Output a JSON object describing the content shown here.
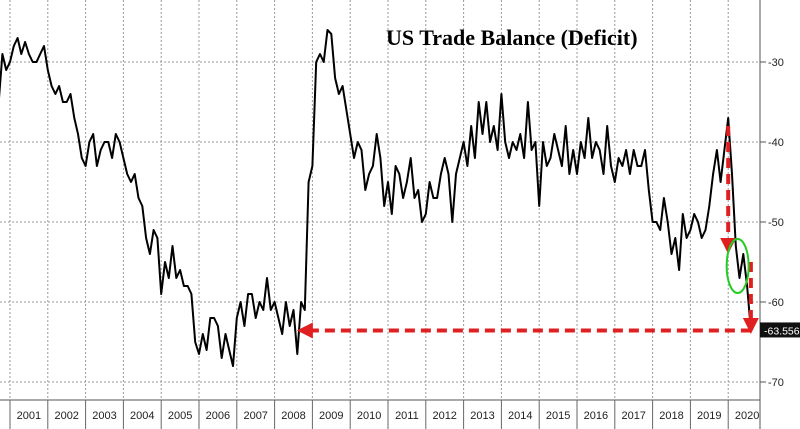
{
  "chart_data": {
    "type": "line",
    "title": "US Trade Balance (Deficit)",
    "xlabel": "",
    "ylabel": "",
    "x_categories": [
      "2001",
      "2002",
      "2003",
      "2004",
      "2005",
      "2006",
      "2007",
      "2008",
      "2009",
      "2010",
      "2011",
      "2012",
      "2013",
      "2014",
      "2015",
      "2016",
      "2017",
      "2018",
      "2019",
      "2020"
    ],
    "y_axis": {
      "position": "right",
      "inverted": true,
      "ylim": [
        -72,
        -22
      ],
      "ticks": [
        -30,
        -40,
        -50,
        -60,
        -70
      ],
      "tick_labels": [
        "-30",
        "-40",
        "-50",
        "-60",
        "-70"
      ]
    },
    "grid": true,
    "series": [
      {
        "name": "",
        "color": "#000000",
        "points": [
          [
            2000.5,
            -33
          ],
          [
            2000.6,
            -34
          ],
          [
            2000.7,
            -35
          ],
          [
            2000.8,
            -29
          ],
          [
            2000.9,
            -31
          ],
          [
            2001.0,
            -30
          ],
          [
            2001.1,
            -28
          ],
          [
            2001.2,
            -27
          ],
          [
            2001.3,
            -29
          ],
          [
            2001.4,
            -27.5
          ],
          [
            2001.5,
            -29
          ],
          [
            2001.6,
            -30
          ],
          [
            2001.7,
            -30
          ],
          [
            2001.8,
            -29
          ],
          [
            2001.9,
            -28
          ],
          [
            2002.0,
            -31
          ],
          [
            2002.1,
            -33
          ],
          [
            2002.2,
            -34
          ],
          [
            2002.3,
            -33
          ],
          [
            2002.4,
            -35
          ],
          [
            2002.5,
            -35
          ],
          [
            2002.6,
            -34
          ],
          [
            2002.7,
            -37
          ],
          [
            2002.8,
            -39
          ],
          [
            2002.9,
            -42
          ],
          [
            2003.0,
            -43
          ],
          [
            2003.1,
            -40
          ],
          [
            2003.2,
            -39
          ],
          [
            2003.3,
            -43
          ],
          [
            2003.4,
            -41
          ],
          [
            2003.5,
            -40
          ],
          [
            2003.6,
            -40
          ],
          [
            2003.7,
            -42
          ],
          [
            2003.8,
            -39
          ],
          [
            2003.9,
            -40
          ],
          [
            2004.0,
            -42
          ],
          [
            2004.1,
            -44
          ],
          [
            2004.2,
            -45
          ],
          [
            2004.3,
            -44
          ],
          [
            2004.4,
            -47
          ],
          [
            2004.5,
            -48
          ],
          [
            2004.6,
            -52
          ],
          [
            2004.7,
            -54
          ],
          [
            2004.8,
            -51
          ],
          [
            2004.9,
            -52
          ],
          [
            2005.0,
            -59
          ],
          [
            2005.1,
            -55
          ],
          [
            2005.2,
            -57
          ],
          [
            2005.3,
            -53
          ],
          [
            2005.4,
            -57
          ],
          [
            2005.5,
            -56
          ],
          [
            2005.6,
            -58
          ],
          [
            2005.7,
            -58
          ],
          [
            2005.8,
            -59
          ],
          [
            2005.9,
            -65
          ],
          [
            2006.0,
            -66.5
          ],
          [
            2006.1,
            -64
          ],
          [
            2006.2,
            -66
          ],
          [
            2006.3,
            -62
          ],
          [
            2006.4,
            -62
          ],
          [
            2006.5,
            -63
          ],
          [
            2006.6,
            -67
          ],
          [
            2006.7,
            -64
          ],
          [
            2006.8,
            -66
          ],
          [
            2006.9,
            -68
          ],
          [
            2007.0,
            -62
          ],
          [
            2007.1,
            -60
          ],
          [
            2007.2,
            -63
          ],
          [
            2007.3,
            -59
          ],
          [
            2007.4,
            -59
          ],
          [
            2007.5,
            -62
          ],
          [
            2007.6,
            -60
          ],
          [
            2007.7,
            -61
          ],
          [
            2007.8,
            -57
          ],
          [
            2007.9,
            -61
          ],
          [
            2008.0,
            -60
          ],
          [
            2008.1,
            -62
          ],
          [
            2008.2,
            -64
          ],
          [
            2008.3,
            -60
          ],
          [
            2008.4,
            -63
          ],
          [
            2008.5,
            -61
          ],
          [
            2008.6,
            -66.5
          ],
          [
            2008.7,
            -60
          ],
          [
            2008.8,
            -61
          ],
          [
            2008.9,
            -45
          ],
          [
            2009.0,
            -43
          ],
          [
            2009.1,
            -30
          ],
          [
            2009.2,
            -29
          ],
          [
            2009.3,
            -30
          ],
          [
            2009.4,
            -26
          ],
          [
            2009.5,
            -26.5
          ],
          [
            2009.6,
            -32
          ],
          [
            2009.7,
            -34
          ],
          [
            2009.8,
            -33
          ],
          [
            2009.9,
            -36
          ],
          [
            2010.0,
            -39
          ],
          [
            2010.1,
            -42
          ],
          [
            2010.2,
            -40
          ],
          [
            2010.3,
            -41
          ],
          [
            2010.4,
            -46
          ],
          [
            2010.5,
            -44
          ],
          [
            2010.6,
            -43
          ],
          [
            2010.7,
            -39
          ],
          [
            2010.8,
            -42
          ],
          [
            2010.9,
            -48
          ],
          [
            2011.0,
            -45
          ],
          [
            2011.1,
            -49
          ],
          [
            2011.2,
            -43
          ],
          [
            2011.3,
            -44
          ],
          [
            2011.4,
            -47
          ],
          [
            2011.5,
            -45
          ],
          [
            2011.6,
            -42
          ],
          [
            2011.7,
            -47
          ],
          [
            2011.8,
            -46
          ],
          [
            2011.9,
            -50
          ],
          [
            2012.0,
            -49
          ],
          [
            2012.1,
            -45
          ],
          [
            2012.2,
            -47
          ],
          [
            2012.3,
            -47
          ],
          [
            2012.4,
            -44
          ],
          [
            2012.5,
            -42
          ],
          [
            2012.6,
            -44
          ],
          [
            2012.7,
            -50
          ],
          [
            2012.8,
            -44
          ],
          [
            2012.9,
            -42
          ],
          [
            2013.0,
            -40
          ],
          [
            2013.1,
            -43
          ],
          [
            2013.2,
            -38
          ],
          [
            2013.3,
            -42
          ],
          [
            2013.4,
            -35
          ],
          [
            2013.5,
            -39
          ],
          [
            2013.6,
            -35
          ],
          [
            2013.7,
            -40
          ],
          [
            2013.8,
            -38
          ],
          [
            2013.9,
            -41
          ],
          [
            2014.0,
            -34
          ],
          [
            2014.1,
            -40
          ],
          [
            2014.2,
            -42
          ],
          [
            2014.3,
            -40
          ],
          [
            2014.4,
            -41
          ],
          [
            2014.5,
            -39
          ],
          [
            2014.6,
            -42
          ],
          [
            2014.7,
            -35
          ],
          [
            2014.8,
            -41
          ],
          [
            2014.9,
            -40
          ],
          [
            2015.0,
            -48
          ],
          [
            2015.1,
            -40
          ],
          [
            2015.2,
            -43
          ],
          [
            2015.3,
            -42
          ],
          [
            2015.4,
            -39
          ],
          [
            2015.5,
            -41
          ],
          [
            2015.6,
            -43
          ],
          [
            2015.7,
            -38
          ],
          [
            2015.8,
            -44
          ],
          [
            2015.9,
            -41
          ],
          [
            2016.0,
            -44
          ],
          [
            2016.1,
            -40
          ],
          [
            2016.2,
            -42
          ],
          [
            2016.3,
            -37
          ],
          [
            2016.4,
            -42
          ],
          [
            2016.5,
            -40
          ],
          [
            2016.6,
            -41
          ],
          [
            2016.7,
            -44
          ],
          [
            2016.8,
            -38
          ],
          [
            2016.9,
            -43
          ],
          [
            2017.0,
            -45
          ],
          [
            2017.1,
            -42
          ],
          [
            2017.2,
            -43
          ],
          [
            2017.3,
            -41
          ],
          [
            2017.4,
            -44
          ],
          [
            2017.5,
            -41
          ],
          [
            2017.6,
            -43
          ],
          [
            2017.7,
            -43
          ],
          [
            2017.8,
            -41
          ],
          [
            2017.9,
            -46
          ],
          [
            2018.0,
            -50
          ],
          [
            2018.1,
            -50
          ],
          [
            2018.2,
            -51
          ],
          [
            2018.3,
            -47
          ],
          [
            2018.4,
            -50
          ],
          [
            2018.5,
            -54
          ],
          [
            2018.6,
            -52
          ],
          [
            2018.7,
            -56
          ],
          [
            2018.8,
            -49
          ],
          [
            2018.9,
            -52
          ],
          [
            2019.0,
            -51
          ],
          [
            2019.1,
            -49
          ],
          [
            2019.2,
            -50
          ],
          [
            2019.3,
            -52
          ],
          [
            2019.4,
            -51
          ],
          [
            2019.5,
            -48
          ],
          [
            2019.6,
            -44
          ],
          [
            2019.7,
            -41
          ],
          [
            2019.8,
            -45
          ],
          [
            2019.9,
            -41
          ],
          [
            2020.0,
            -37
          ],
          [
            2020.1,
            -44
          ],
          [
            2020.2,
            -53
          ],
          [
            2020.3,
            -57
          ],
          [
            2020.4,
            -54
          ],
          [
            2020.5,
            -58
          ],
          [
            2020.6,
            -63.556
          ]
        ]
      }
    ],
    "last_value_label": "-63.556",
    "annotations": [
      {
        "kind": "dashed-arrow",
        "color": "#e02020",
        "from": [
          2020.0,
          -38
        ],
        "to": [
          2020.0,
          -53
        ]
      },
      {
        "kind": "dashed-arrow",
        "color": "#e02020",
        "from": [
          2020.6,
          -55
        ],
        "to": [
          2020.6,
          -63
        ]
      },
      {
        "kind": "dashed-arrow",
        "color": "#e02020",
        "from": [
          2020.6,
          -63.556
        ],
        "to": [
          2008.8,
          -63.556
        ]
      },
      {
        "kind": "ellipse",
        "color": "#22cc22",
        "center": [
          2020.25,
          -55.5
        ]
      }
    ]
  }
}
